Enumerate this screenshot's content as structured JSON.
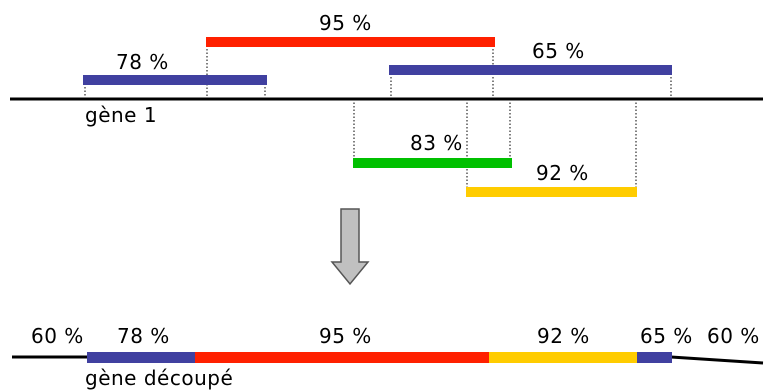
{
  "colors": {
    "blue": "#4040a0",
    "red": "#ff2000",
    "green": "#00c000",
    "yellow": "#ffcc00",
    "arrow_fill": "#c0c0c0",
    "line": "#000000"
  },
  "top": {
    "gene_label": "gène 1",
    "segments": [
      {
        "label": "78 %",
        "color": "blue"
      },
      {
        "label": "95 %",
        "color": "red"
      },
      {
        "label": "65 %",
        "color": "blue"
      },
      {
        "label": "83 %",
        "color": "green"
      },
      {
        "label": "92 %",
        "color": "yellow"
      }
    ]
  },
  "bottom": {
    "gene_label": "gène découpé",
    "left_outer_label": "60 %",
    "right_outer_label": "60 %",
    "segments": [
      {
        "label": "78 %",
        "color": "blue"
      },
      {
        "label": "95 %",
        "color": "red"
      },
      {
        "label": "92 %",
        "color": "yellow"
      },
      {
        "label": "65 %",
        "color": "blue"
      }
    ]
  }
}
